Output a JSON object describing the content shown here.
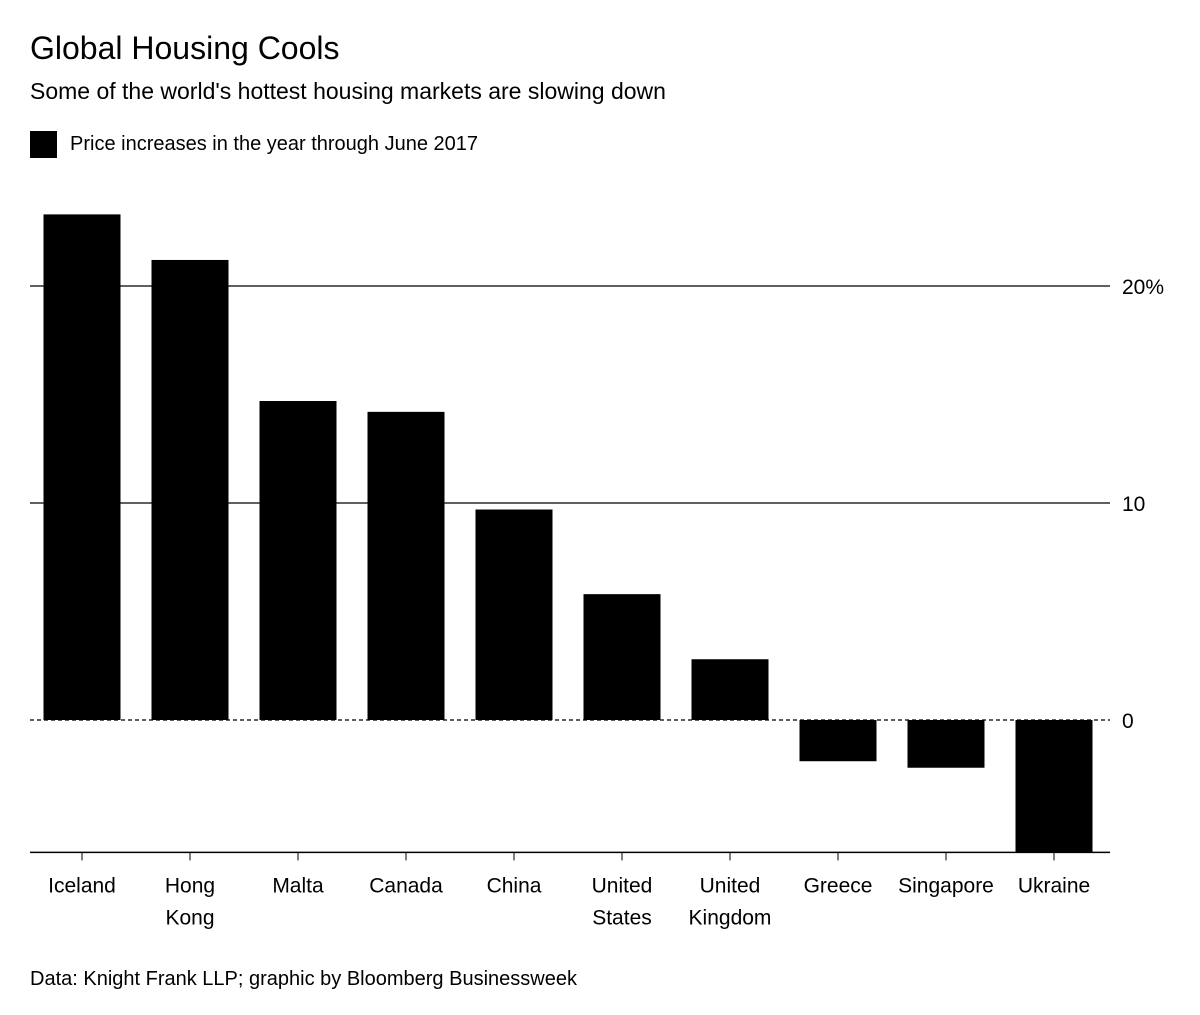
{
  "chart_data": {
    "type": "bar",
    "title": "Global Housing Cools",
    "subtitle": "Some of the world's hottest housing markets are slowing down",
    "legend": [
      {
        "name": "Price increases in the year through June 2017",
        "color": "#000000"
      }
    ],
    "legend_placement": "top-left",
    "categories": [
      [
        "Iceland"
      ],
      [
        "Hong",
        "Kong"
      ],
      [
        "Malta"
      ],
      [
        "Canada"
      ],
      [
        "China"
      ],
      [
        "United",
        "States"
      ],
      [
        "United",
        "Kingdom"
      ],
      [
        "Greece"
      ],
      [
        "Singapore"
      ],
      [
        "Ukraine"
      ]
    ],
    "series": [
      {
        "name": "Price increases in the year through June 2017",
        "values": [
          23.3,
          21.2,
          14.7,
          14.2,
          9.7,
          5.8,
          2.8,
          -1.9,
          -2.2,
          -6.1
        ]
      }
    ],
    "yticks": [
      {
        "value": 0,
        "label": "0"
      },
      {
        "value": 10,
        "label": "10"
      },
      {
        "value": 20,
        "label": "20%"
      }
    ],
    "ylim": [
      -6.1,
      24
    ],
    "grid": true,
    "y_axis_side": "right",
    "bar_color": "#000000",
    "source": "Data: Knight Frank LLP; graphic by Bloomberg Businessweek"
  }
}
